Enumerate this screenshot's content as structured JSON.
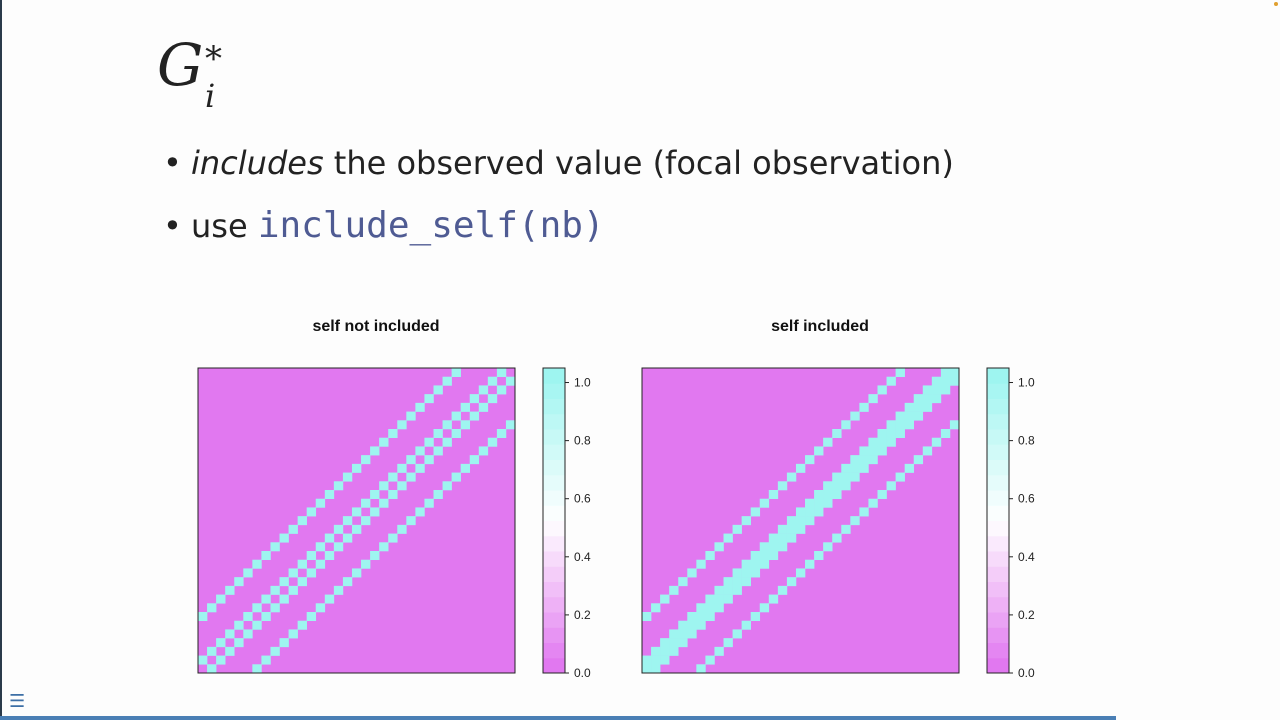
{
  "slide": {
    "title": {
      "base": "G",
      "superscript": "*",
      "subscript": "i"
    },
    "bullets": [
      {
        "emphasis": "includes",
        "text": " the observed value (focal observation)"
      },
      {
        "prefix": "use ",
        "code": "include_self(nb)"
      }
    ]
  },
  "chart_data": [
    {
      "type": "heatmap",
      "title": "self not included",
      "matrix_size": 35,
      "description_of_pattern": "binary neighbour matrix: two off-diagonal bands (rook/queen neighbours) plus faint checkerboard bands between them; main diagonal = 0",
      "values": [
        0,
        1
      ],
      "legend": {
        "ticks": [
          "0.0",
          "0.2",
          "0.4",
          "0.6",
          "0.8",
          "1.0"
        ],
        "range": [
          0,
          1.05
        ]
      },
      "colors": {
        "low": "#e178f0",
        "high": "#9ef5f0"
      }
    },
    {
      "type": "heatmap",
      "title": "self included",
      "matrix_size": 35,
      "description_of_pattern": "binary neighbour matrix including main diagonal: three parallel bands",
      "values": [
        0,
        1
      ],
      "legend": {
        "ticks": [
          "0.0",
          "0.2",
          "0.4",
          "0.6",
          "0.8",
          "1.0"
        ],
        "range": [
          0,
          1.05
        ]
      },
      "colors": {
        "low": "#e178f0",
        "high": "#9ef5f0"
      }
    }
  ],
  "ui": {
    "menu_icon": "hamburger-menu-icon"
  }
}
